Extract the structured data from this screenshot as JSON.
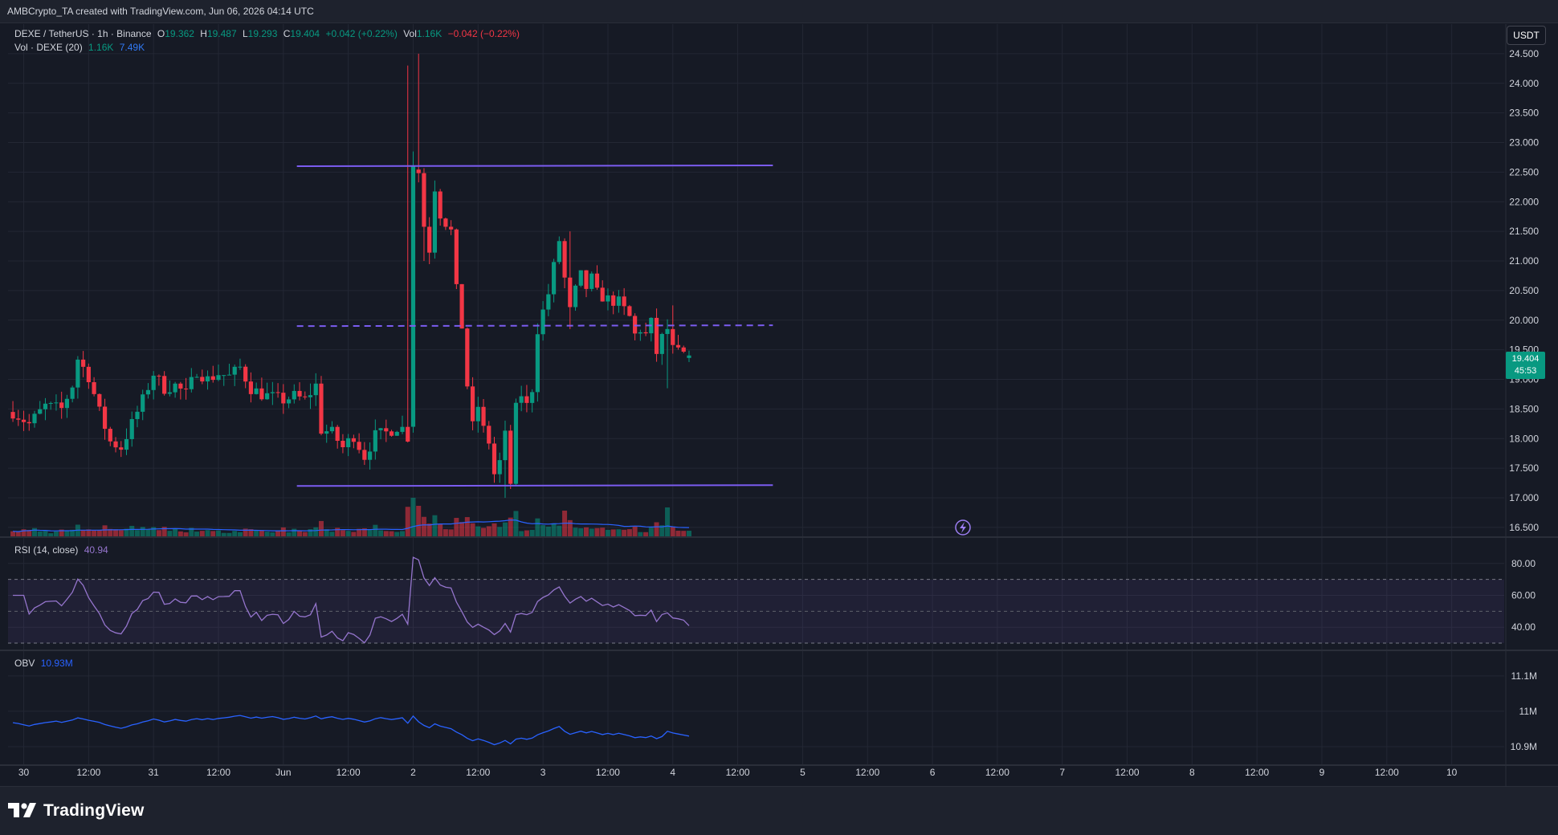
{
  "header": {
    "credit": "AMBCrypto_TA created with TradingView.com, Jun 06, 2026 04:14 UTC"
  },
  "legend": {
    "symbol": "DEXE / TetherUS · 1h · Binance",
    "o_label": "O",
    "o_value": "19.362",
    "h_label": "H",
    "h_value": "19.487",
    "l_label": "L",
    "l_value": "19.293",
    "c_label": "C",
    "c_value": "19.404",
    "change": "+0.042 (+0.22%)",
    "vol_label": "Vol",
    "vol_value": "1.16K",
    "vol_change": "−0.042 (−0.22%)",
    "vol_ma_label": "Vol · DEXE (20)",
    "vol_ma_v1": "1.16K",
    "vol_ma_v2": "7.49K"
  },
  "currency_button": "USDT",
  "last_price": {
    "price": "19.404",
    "countdown": "45:53"
  },
  "rsi": {
    "label": "RSI (14, close)",
    "value": "40.94"
  },
  "obv": {
    "label": "OBV",
    "value": "10.93M"
  },
  "footer": {
    "brand": "TradingView"
  },
  "colors": {
    "up": "#089981",
    "down": "#f23645",
    "channel": "#7b5cf0",
    "rsi_line": "#9575cd",
    "obv_line": "#2962ff",
    "background": "#161a25"
  },
  "chart_data": [
    {
      "type": "candlestick",
      "interval": "1h",
      "y_ticks": [
        "16.500",
        "17.000",
        "17.500",
        "18.000",
        "18.500",
        "19.000",
        "19.500",
        "20.000",
        "20.500",
        "21.000",
        "21.500",
        "22.000",
        "22.500",
        "23.000",
        "23.500",
        "24.000",
        "24.500"
      ],
      "ylim": [
        16.35,
        25.0
      ],
      "x_ticks": [
        {
          "label": "30",
          "t": 0
        },
        {
          "label": "12:00",
          "t": 12
        },
        {
          "label": "31",
          "t": 24
        },
        {
          "label": "12:00",
          "t": 36
        },
        {
          "label": "Jun",
          "t": 48
        },
        {
          "label": "12:00",
          "t": 60
        },
        {
          "label": "2",
          "t": 72
        },
        {
          "label": "12:00",
          "t": 84
        },
        {
          "label": "3",
          "t": 96
        },
        {
          "label": "12:00",
          "t": 108
        },
        {
          "label": "4",
          "t": 120
        },
        {
          "label": "12:00",
          "t": 132
        },
        {
          "label": "5",
          "t": 144
        },
        {
          "label": "12:00",
          "t": 156
        },
        {
          "label": "6",
          "t": 168
        },
        {
          "label": "12:00",
          "t": 180
        },
        {
          "label": "7",
          "t": 192
        },
        {
          "label": "12:00",
          "t": 204
        },
        {
          "label": "8",
          "t": 216
        },
        {
          "label": "12:00",
          "t": 228
        },
        {
          "label": "9",
          "t": 240
        },
        {
          "label": "12:00",
          "t": 252
        },
        {
          "label": "10",
          "t": 264
        }
      ],
      "x_range_hours": [
        -2.9,
        273.7
      ],
      "price_keyframes": [
        [
          -2,
          18.45
        ],
        [
          1,
          18.25
        ],
        [
          4,
          18.55
        ],
        [
          7,
          18.5
        ],
        [
          9,
          18.9
        ],
        [
          10,
          19.35
        ],
        [
          12,
          19.05
        ],
        [
          14,
          18.45
        ],
        [
          16,
          17.95
        ],
        [
          18,
          17.85
        ],
        [
          20,
          18.25
        ],
        [
          22,
          18.65
        ],
        [
          24,
          19.1
        ],
        [
          26,
          18.85
        ],
        [
          28,
          18.9
        ],
        [
          30,
          18.75
        ],
        [
          32,
          19.15
        ],
        [
          34,
          19.0
        ],
        [
          36,
          19.1
        ],
        [
          38,
          19.05
        ],
        [
          40,
          19.2
        ],
        [
          42,
          18.85
        ],
        [
          44,
          18.75
        ],
        [
          46,
          18.7
        ],
        [
          48,
          18.65
        ],
        [
          50,
          18.72
        ],
        [
          52,
          18.65
        ],
        [
          54,
          18.9
        ],
        [
          55,
          18.15
        ],
        [
          57,
          18.1
        ],
        [
          59,
          17.85
        ],
        [
          61,
          18.05
        ],
        [
          63,
          17.7
        ],
        [
          65,
          18.05
        ],
        [
          67,
          18.1
        ],
        [
          69,
          18.2
        ],
        [
          71,
          18.15
        ],
        [
          72,
          22.6
        ],
        [
          73,
          22.5
        ],
        [
          74,
          21.6
        ],
        [
          75,
          21.2
        ],
        [
          76,
          22.25
        ],
        [
          77,
          21.8
        ],
        [
          79,
          21.5
        ],
        [
          80,
          20.5
        ],
        [
          81,
          19.9
        ],
        [
          82,
          18.9
        ],
        [
          83,
          18.2
        ],
        [
          84,
          18.55
        ],
        [
          85,
          18.15
        ],
        [
          86,
          17.95
        ],
        [
          87,
          17.4
        ],
        [
          88,
          17.6
        ],
        [
          89,
          18.05
        ],
        [
          90,
          17.25
        ],
        [
          91,
          18.5
        ],
        [
          92,
          18.75
        ],
        [
          93,
          18.55
        ],
        [
          94,
          18.85
        ],
        [
          95,
          19.85
        ],
        [
          96,
          20.15
        ],
        [
          97,
          20.45
        ],
        [
          98,
          20.9
        ],
        [
          99,
          21.35
        ],
        [
          100,
          20.7
        ],
        [
          101,
          20.15
        ],
        [
          102,
          20.5
        ],
        [
          103,
          20.75
        ],
        [
          104,
          20.55
        ],
        [
          105,
          20.7
        ],
        [
          106,
          20.45
        ],
        [
          108,
          20.35
        ],
        [
          110,
          20.3
        ],
        [
          112,
          20.05
        ],
        [
          113,
          19.75
        ],
        [
          114,
          19.85
        ],
        [
          115,
          19.75
        ],
        [
          116,
          19.95
        ],
        [
          117,
          19.45
        ],
        [
          118,
          19.7
        ],
        [
          119,
          19.85
        ],
        [
          120,
          19.5
        ],
        [
          121,
          19.45
        ],
        [
          122,
          19.42
        ],
        [
          123,
          19.4
        ]
      ],
      "channel_top": 22.6,
      "channel_mid": 19.9,
      "channel_bottom": 17.2,
      "channel_hours": [
        50.5,
        138.5
      ]
    },
    {
      "type": "line",
      "name": "RSI (14, close)",
      "y_ticks": [
        "40.00",
        "60.00",
        "80.00"
      ],
      "ylim": [
        26,
        96
      ],
      "levels": [
        70,
        50,
        30
      ],
      "last": 40.94
    },
    {
      "type": "line",
      "name": "OBV",
      "y_ticks": [
        "10.9M",
        "11M",
        "11.1M"
      ],
      "ylim": [
        10.85,
        11.17
      ],
      "last_millions": 10.93
    }
  ]
}
